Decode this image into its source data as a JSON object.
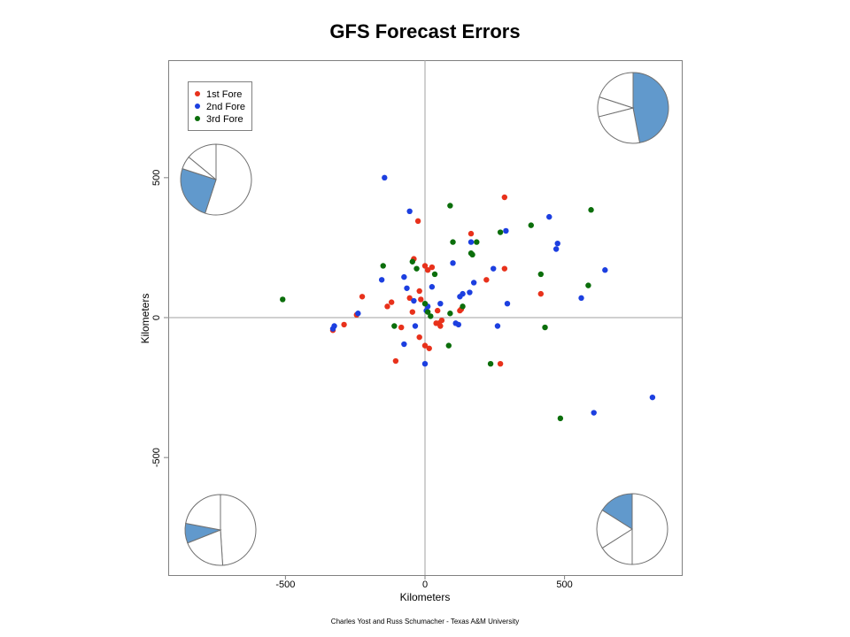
{
  "chart_data": {
    "type": "scatter",
    "title": "GFS Forecast Errors",
    "xlabel": "Kilometers",
    "ylabel": "Kilometers",
    "credit": "Charles Yost and Russ Schumacher - Texas A&M University",
    "xlim": [
      -920,
      920
    ],
    "ylim": [
      -920,
      920
    ],
    "x_ticks": [
      -500,
      0,
      500
    ],
    "y_ticks": [
      -500,
      0,
      500
    ],
    "x_tick_labels": [
      "-500",
      "0",
      "500"
    ],
    "y_tick_labels": [
      "-500",
      "0",
      "500"
    ],
    "legend_position": "top-left",
    "zero_lines": true,
    "grid": false,
    "series": [
      {
        "name": "1st Fore",
        "color": "#e8311b",
        "points": [
          [
            -330,
            -45
          ],
          [
            -290,
            -25
          ],
          [
            -245,
            10
          ],
          [
            -225,
            75
          ],
          [
            -135,
            40
          ],
          [
            -120,
            55
          ],
          [
            -105,
            -155
          ],
          [
            -85,
            -35
          ],
          [
            -55,
            70
          ],
          [
            -45,
            20
          ],
          [
            -40,
            210
          ],
          [
            -25,
            345
          ],
          [
            -20,
            95
          ],
          [
            -20,
            -70
          ],
          [
            0,
            185
          ],
          [
            0,
            -100
          ],
          [
            10,
            170
          ],
          [
            15,
            -110
          ],
          [
            25,
            180
          ],
          [
            45,
            25
          ],
          [
            50,
            -20
          ],
          [
            55,
            -30
          ],
          [
            60,
            -10
          ],
          [
            125,
            25
          ],
          [
            130,
            30
          ],
          [
            165,
            300
          ],
          [
            220,
            135
          ],
          [
            270,
            -165
          ],
          [
            285,
            175
          ],
          [
            285,
            430
          ],
          [
            415,
            85
          ],
          [
            -15,
            65
          ],
          [
            40,
            -20
          ]
        ]
      },
      {
        "name": "2nd Fore",
        "color": "#1c3fe0",
        "points": [
          [
            -330,
            -40
          ],
          [
            -325,
            -30
          ],
          [
            -240,
            15
          ],
          [
            -145,
            500
          ],
          [
            -155,
            135
          ],
          [
            -75,
            145
          ],
          [
            -65,
            105
          ],
          [
            -55,
            380
          ],
          [
            -40,
            60
          ],
          [
            -35,
            -30
          ],
          [
            -75,
            -95
          ],
          [
            0,
            -165
          ],
          [
            5,
            25
          ],
          [
            10,
            40
          ],
          [
            25,
            110
          ],
          [
            55,
            50
          ],
          [
            100,
            195
          ],
          [
            110,
            -20
          ],
          [
            120,
            -25
          ],
          [
            125,
            75
          ],
          [
            135,
            85
          ],
          [
            160,
            90
          ],
          [
            165,
            270
          ],
          [
            175,
            125
          ],
          [
            245,
            175
          ],
          [
            260,
            -30
          ],
          [
            290,
            310
          ],
          [
            295,
            50
          ],
          [
            445,
            360
          ],
          [
            470,
            245
          ],
          [
            475,
            265
          ],
          [
            560,
            70
          ],
          [
            605,
            -340
          ],
          [
            645,
            170
          ],
          [
            815,
            -285
          ]
        ]
      },
      {
        "name": "3rd Fore",
        "color": "#0b6e0b",
        "points": [
          [
            -510,
            65
          ],
          [
            -150,
            185
          ],
          [
            -110,
            -30
          ],
          [
            -45,
            200
          ],
          [
            -30,
            175
          ],
          [
            0,
            50
          ],
          [
            10,
            20
          ],
          [
            20,
            5
          ],
          [
            35,
            155
          ],
          [
            85,
            -100
          ],
          [
            90,
            400
          ],
          [
            90,
            15
          ],
          [
            100,
            270
          ],
          [
            135,
            40
          ],
          [
            165,
            230
          ],
          [
            170,
            225
          ],
          [
            185,
            270
          ],
          [
            235,
            -165
          ],
          [
            270,
            305
          ],
          [
            380,
            330
          ],
          [
            415,
            155
          ],
          [
            430,
            -35
          ],
          [
            485,
            -360
          ],
          [
            585,
            115
          ],
          [
            595,
            385
          ]
        ]
      }
    ],
    "quadrant_pies": [
      {
        "quadrant": "top-right",
        "highlight_color": "#6199cc",
        "slices": [
          {
            "share": 0.47,
            "highlighted": true
          },
          {
            "share": 0.24,
            "highlighted": false
          },
          {
            "share": 0.09,
            "highlighted": false
          },
          {
            "share": 0.2,
            "highlighted": false
          }
        ]
      },
      {
        "quadrant": "top-left",
        "highlight_color": "#6199cc",
        "slices": [
          {
            "share": 0.55,
            "highlighted": false
          },
          {
            "share": 0.25,
            "highlighted": true
          },
          {
            "share": 0.06,
            "highlighted": false
          },
          {
            "share": 0.14,
            "highlighted": false
          }
        ]
      },
      {
        "quadrant": "bottom-left",
        "highlight_color": "#6199cc",
        "slices": [
          {
            "share": 0.49,
            "highlighted": false
          },
          {
            "share": 0.2,
            "highlighted": false
          },
          {
            "share": 0.09,
            "highlighted": true
          },
          {
            "share": 0.22,
            "highlighted": false
          }
        ]
      },
      {
        "quadrant": "bottom-right",
        "highlight_color": "#6199cc",
        "slices": [
          {
            "share": 0.5,
            "highlighted": false
          },
          {
            "share": 0.16,
            "highlighted": false
          },
          {
            "share": 0.18,
            "highlighted": false
          },
          {
            "share": 0.16,
            "highlighted": true
          }
        ]
      }
    ]
  }
}
